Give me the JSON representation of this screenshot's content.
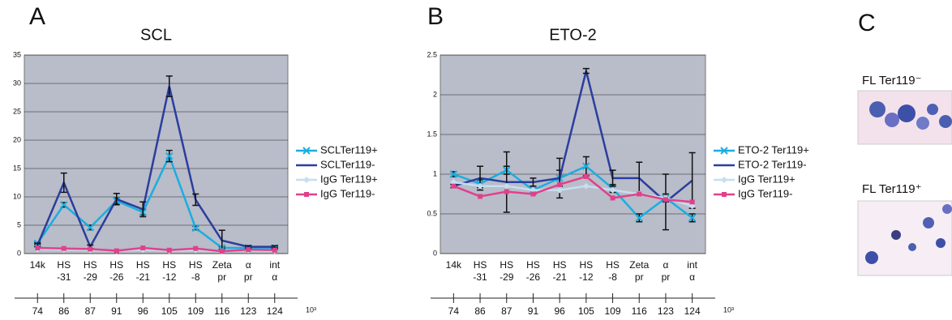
{
  "panel_labels": [
    "A",
    "B",
    "C"
  ],
  "micrographs": [
    {
      "label": "FL Ter119⁻"
    },
    {
      "label": "FL Ter119⁺"
    }
  ],
  "chart_data": [
    {
      "type": "line",
      "title": "SCL",
      "categories": [
        "14k",
        "HS -31",
        "HS -29",
        "HS -26",
        "HS -21",
        "HS -12",
        "HS -8",
        "Zeta pr",
        "α pr",
        "int α"
      ],
      "positions": [
        74,
        86,
        87,
        91,
        96,
        105,
        109,
        116,
        123,
        124
      ],
      "positions_unit": "10³",
      "ylim": [
        0,
        35
      ],
      "yticks": [
        0,
        5,
        10,
        15,
        20,
        25,
        30,
        35
      ],
      "grid": true,
      "series": [
        {
          "name": "SCLTer119+",
          "color": "#19aee0",
          "marker": "x",
          "values": [
            1.8,
            8.6,
            4.6,
            9.3,
            7.3,
            17.2,
            4.5,
            1.0,
            1.0,
            1.0
          ],
          "errors": [
            0.2,
            0.4,
            0.4,
            0.5,
            0.5,
            1.0,
            0.3,
            0.2,
            0.2,
            0.2
          ]
        },
        {
          "name": "SCLTer119-",
          "color": "#2a3e9e",
          "marker": "none",
          "values": [
            1.5,
            12.5,
            1.2,
            9.6,
            7.8,
            29.5,
            9.5,
            2.3,
            1.2,
            1.2
          ],
          "errors": [
            0.3,
            1.7,
            0.3,
            1.0,
            1.3,
            1.8,
            1.0,
            1.8,
            0.2,
            0.2
          ]
        },
        {
          "name": "IgG Ter119+",
          "color": "#c6def0",
          "marker": "diamond",
          "values": [
            0.8,
            0.7,
            0.6,
            0.5,
            0.7,
            0.5,
            0.6,
            0.4,
            0.6,
            0.5
          ]
        },
        {
          "name": "IgG Ter119-",
          "color": "#e0418b",
          "marker": "square",
          "values": [
            1.0,
            0.9,
            0.8,
            0.5,
            1.0,
            0.6,
            0.9,
            0.4,
            0.7,
            0.6
          ]
        }
      ]
    },
    {
      "type": "line",
      "title": "ETO-2",
      "categories": [
        "14k",
        "HS -31",
        "HS -29",
        "HS -26",
        "HS -21",
        "HS -12",
        "HS -8",
        "Zeta pr",
        "α pr",
        "int α"
      ],
      "positions": [
        74,
        86,
        87,
        91,
        96,
        105,
        109,
        116,
        123,
        124
      ],
      "positions_unit": "10³",
      "ylim": [
        0,
        2.5
      ],
      "yticks": [
        0,
        0.5,
        1,
        1.5,
        2,
        2.5
      ],
      "grid": true,
      "series": [
        {
          "name": "ETO-2 Ter119+",
          "color": "#19aee0",
          "marker": "x",
          "values": [
            1.0,
            0.88,
            1.05,
            0.8,
            0.95,
            1.1,
            0.82,
            0.45,
            0.7,
            0.45
          ],
          "errors": [
            0.03,
            0.05,
            0.05,
            0.05,
            0.1,
            0.12,
            0.05,
            0.05,
            0.05,
            0.05
          ]
        },
        {
          "name": "ETO-2 Ter119-",
          "color": "#2a3e9e",
          "marker": "none",
          "values": [
            0.85,
            0.95,
            0.9,
            0.9,
            0.95,
            2.3,
            0.95,
            0.95,
            0.65,
            0.92
          ],
          "errors": [
            0.02,
            0.15,
            0.38,
            0.05,
            0.25,
            0.03,
            0.1,
            0.2,
            0.35,
            0.35
          ]
        },
        {
          "name": "IgG Ter119+",
          "color": "#c6def0",
          "marker": "diamond",
          "values": [
            0.9,
            0.85,
            0.85,
            0.8,
            0.8,
            0.85,
            0.8,
            0.75,
            0.7,
            0.6
          ]
        },
        {
          "name": "IgG Ter119-",
          "color": "#e0418b",
          "marker": "square",
          "values": [
            0.85,
            0.72,
            0.78,
            0.75,
            0.87,
            0.97,
            0.7,
            0.75,
            0.68,
            0.65
          ]
        }
      ]
    }
  ]
}
